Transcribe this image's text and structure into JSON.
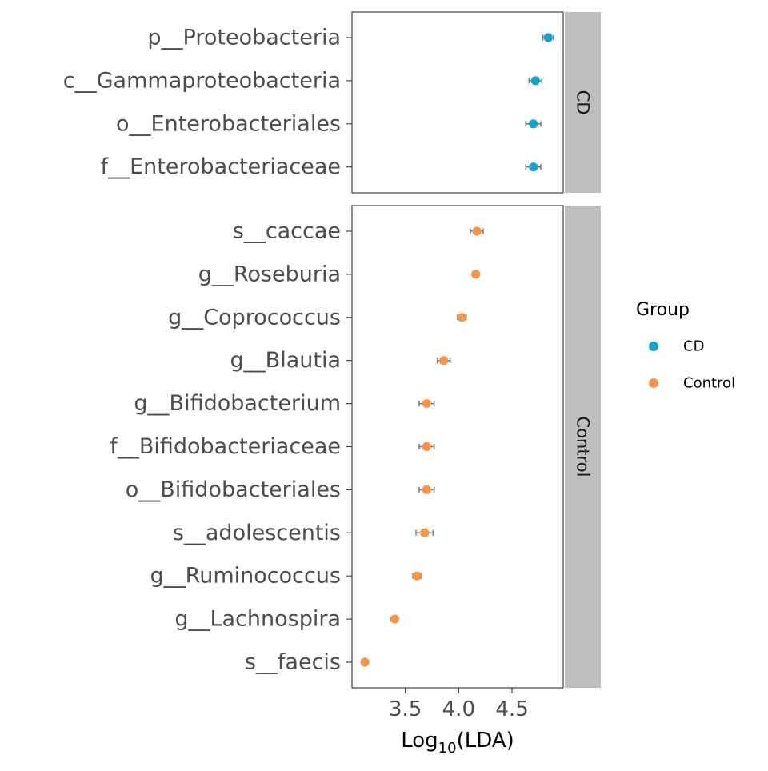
{
  "chart_data": {
    "type": "scatter",
    "xlabel": "Log10(LDA)",
    "xlabel_main": "Log",
    "xlabel_sub": "10",
    "xlabel_tail": "(LDA)",
    "xlim": [
      3.0,
      4.98
    ],
    "x_ticks": [
      3.5,
      4.0,
      4.5
    ],
    "x_tick_labels": [
      "3.5",
      "4.0",
      "4.5"
    ],
    "grid": false,
    "legend": {
      "title": "Group",
      "position": "right",
      "entries": [
        {
          "label": "CD",
          "color": "#0fa5cc"
        },
        {
          "label": "Control",
          "color": "#f99447"
        }
      ]
    },
    "panels": [
      {
        "strip": "CD",
        "color": "#0fa5cc",
        "points": [
          {
            "label": "p__Proteobacteria",
            "x": 4.84,
            "err": 0.05
          },
          {
            "label": "c__Gammaproteobacteria",
            "x": 4.72,
            "err": 0.06
          },
          {
            "label": "o__Enterobacteriales",
            "x": 4.7,
            "err": 0.07
          },
          {
            "label": "f__Enterobacteriaceae",
            "x": 4.7,
            "err": 0.07
          }
        ]
      },
      {
        "strip": "Control",
        "color": "#f99447",
        "points": [
          {
            "label": "s__caccae",
            "x": 4.17,
            "err": 0.06
          },
          {
            "label": "g__Roseburia",
            "x": 4.16,
            "err": 0.03
          },
          {
            "label": "g__Coprococcus",
            "x": 4.03,
            "err": 0.04
          },
          {
            "label": "g__Blautia",
            "x": 3.86,
            "err": 0.06
          },
          {
            "label": "g__Bifidobacterium",
            "x": 3.7,
            "err": 0.07
          },
          {
            "label": "f__Bifidobacteriaceae",
            "x": 3.7,
            "err": 0.07
          },
          {
            "label": "o__Bifidobacteriales",
            "x": 3.7,
            "err": 0.07
          },
          {
            "label": "s__adolescentis",
            "x": 3.68,
            "err": 0.08
          },
          {
            "label": "g__Ruminococcus",
            "x": 3.61,
            "err": 0.04
          },
          {
            "label": "g__Lachnospira",
            "x": 3.4,
            "err": 0.03
          },
          {
            "label": "s__faecis",
            "x": 3.12,
            "err": 0.02
          }
        ]
      }
    ]
  }
}
